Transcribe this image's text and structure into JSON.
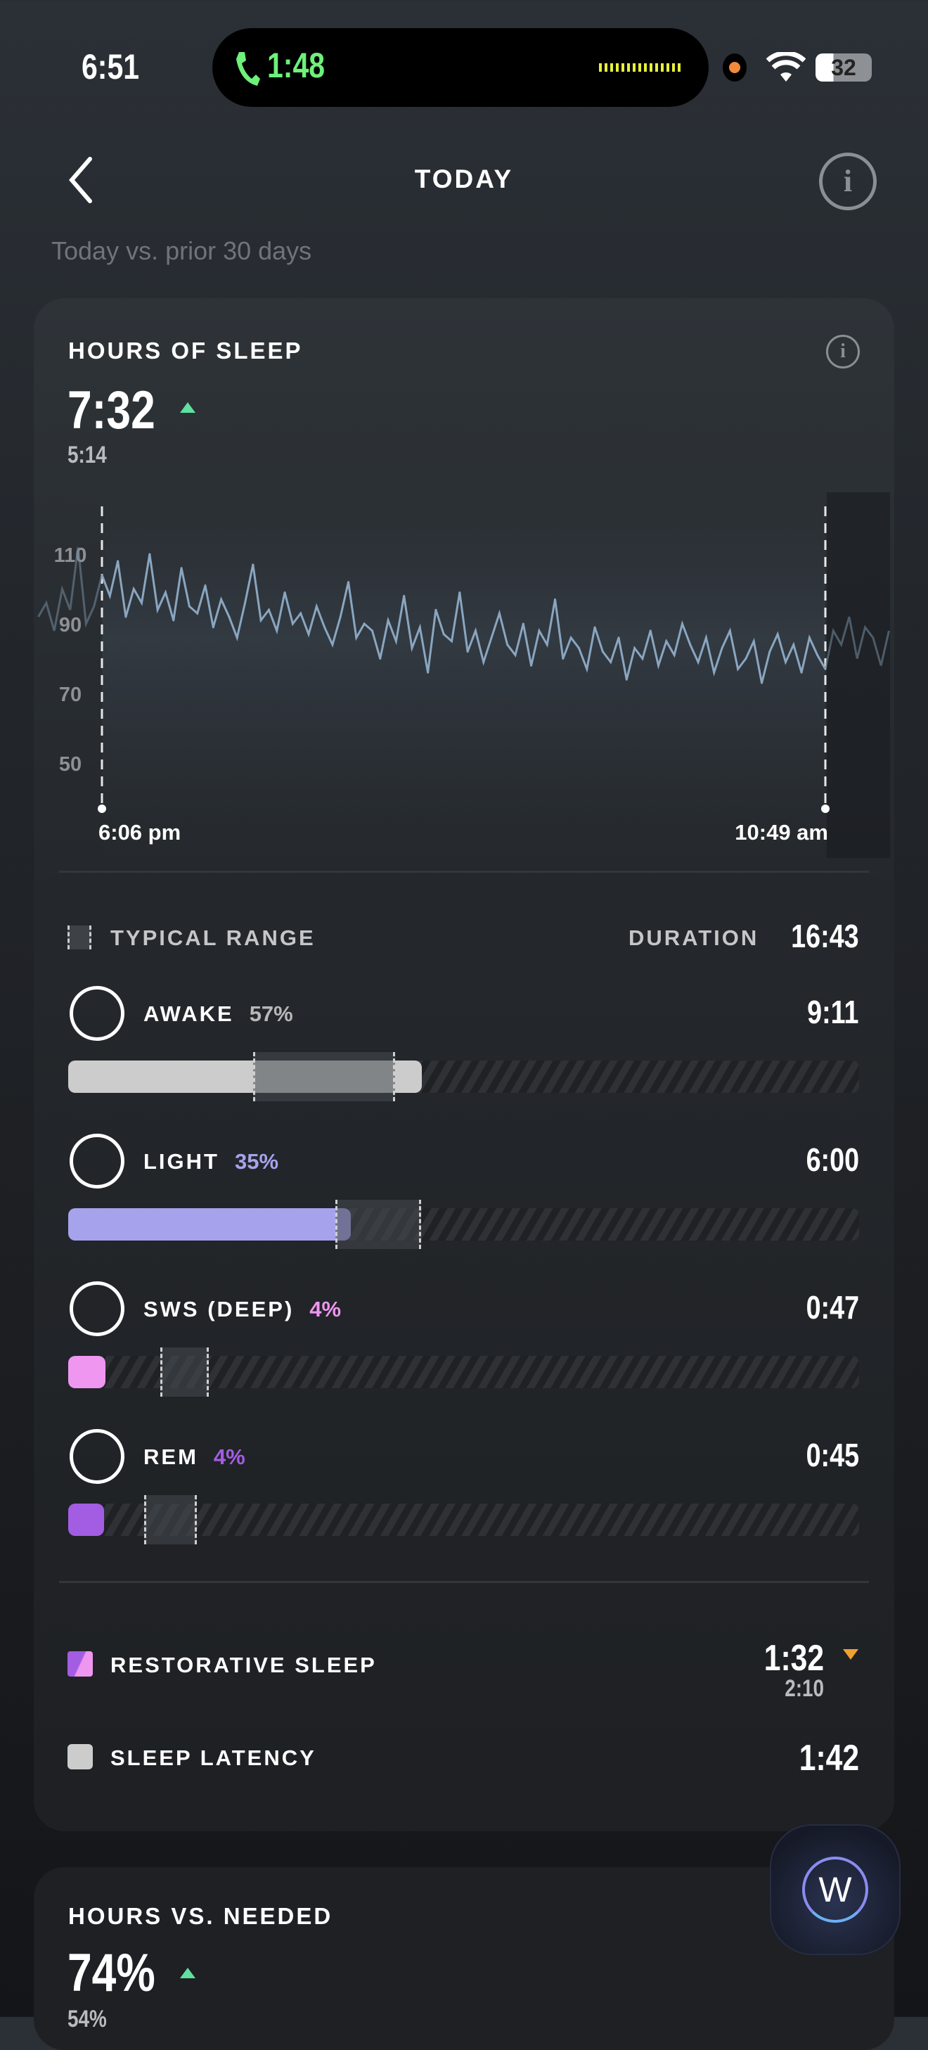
{
  "status_bar": {
    "time": "6:51",
    "call_duration": "1:48",
    "battery": "32",
    "icons": [
      "phone-icon",
      "waveform-icon",
      "recording-dot-icon",
      "wifi-icon",
      "battery-icon"
    ]
  },
  "header": {
    "title": "TODAY",
    "subtitle": "Today vs. prior 30 days",
    "back_icon": "chevron-left-icon",
    "info_icon": "info-icon"
  },
  "sleep_card": {
    "title": "HOURS OF SLEEP",
    "value": "7:32",
    "trend": "up",
    "baseline": "5:14",
    "legend_label": "TYPICAL RANGE",
    "duration_label": "DURATION",
    "duration": "16:43",
    "stages": [
      {
        "name": "AWAKE",
        "percent": "57%",
        "time": "9:11",
        "color": "#cccccc",
        "pct_color": "#b8b8b8",
        "fill": 0.447,
        "range": [
          0.234,
          0.413
        ]
      },
      {
        "name": "LIGHT",
        "percent": "35%",
        "time": "6:00",
        "color": "#a6a3ec",
        "pct_color": "#a6a3ec",
        "fill": 0.357,
        "range": [
          0.338,
          0.446
        ]
      },
      {
        "name": "SWS (DEEP)",
        "percent": "4%",
        "time": "0:47",
        "color": "#ee96f0",
        "pct_color": "#ee96f0",
        "fill": 0.047,
        "range": [
          0.116,
          0.178
        ]
      },
      {
        "name": "REM",
        "percent": "4%",
        "time": "0:45",
        "color": "#a35de3",
        "pct_color": "#a35de3",
        "fill": 0.045,
        "range": [
          0.096,
          0.163
        ]
      }
    ],
    "restorative": {
      "label": "RESTORATIVE SLEEP",
      "value": "1:32",
      "trend": "down",
      "baseline": "2:10"
    },
    "latency": {
      "label": "SLEEP LATENCY",
      "value": "1:42"
    }
  },
  "needed_card": {
    "title": "HOURS VS. NEEDED",
    "value": "74%",
    "trend": "up",
    "baseline": "54%"
  },
  "colors": {
    "up": "#5fe0a0",
    "down": "#f0a030",
    "line": "#8aa6c0"
  },
  "chart_data": {
    "type": "line",
    "y_ticks": [
      110,
      90,
      70,
      50
    ],
    "ylim": [
      50,
      110
    ],
    "x_labels": [
      "6:06 pm",
      "10:49 am"
    ],
    "pre_sleep": [
      92,
      96,
      88,
      100,
      94,
      112,
      90,
      95
    ],
    "values": [
      104,
      98,
      108,
      92,
      100,
      96,
      110,
      94,
      99,
      91,
      106,
      95,
      93,
      101,
      89,
      97,
      92,
      86,
      96,
      107,
      91,
      94,
      88,
      99,
      90,
      93,
      87,
      95,
      89,
      84,
      92,
      102,
      86,
      90,
      88,
      80,
      91,
      85,
      98,
      83,
      89,
      76,
      94,
      87,
      85,
      99,
      82,
      88,
      79,
      86,
      93,
      84,
      81,
      90,
      78,
      88,
      84,
      97,
      80,
      86,
      83,
      77,
      89,
      82,
      79,
      86,
      74,
      83,
      80,
      88,
      78,
      85,
      81,
      90,
      84,
      79,
      86,
      76,
      83,
      88,
      77,
      80,
      85,
      73,
      82,
      87,
      79,
      84,
      76,
      86,
      81,
      77
    ],
    "post_sleep": [
      88,
      84,
      92,
      80,
      89,
      86,
      78,
      88
    ]
  }
}
